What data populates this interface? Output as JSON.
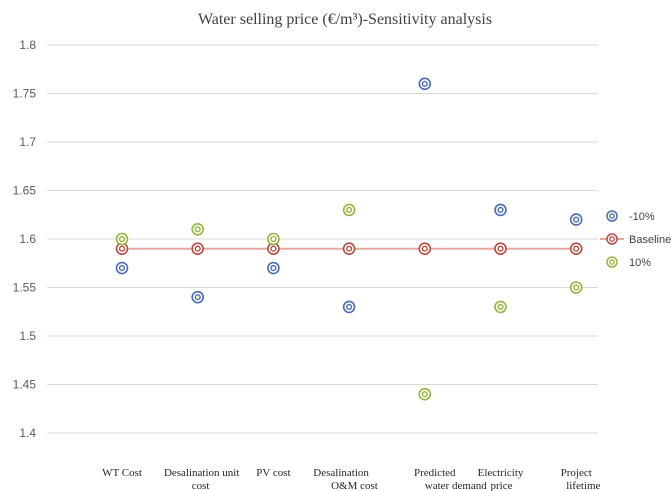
{
  "chart_data": {
    "type": "scatter",
    "title": "Water selling price (€/m³)-Sensitivity analysis",
    "categories": [
      [
        "WT Cost"
      ],
      [
        "Desalination  unit",
        "cost"
      ],
      [
        "PV cost"
      ],
      [
        "Desalination",
        "O&M cost"
      ],
      [
        "Predicted",
        "water demand"
      ],
      [
        "Electricity",
        "price"
      ],
      [
        "Project",
        "lifetime"
      ]
    ],
    "y_ticks": [
      "1.4",
      "1.45",
      "1.5",
      "1.55",
      "1.6",
      "1.65",
      "1.7",
      "1.75",
      "1.8"
    ],
    "ylim": [
      1.4,
      1.8
    ],
    "grid": true,
    "legend_position": "right",
    "series": [
      {
        "name": "-10%",
        "color": "#4a6bb5",
        "values": [
          1.57,
          1.54,
          1.57,
          1.53,
          1.76,
          1.63,
          1.62
        ]
      },
      {
        "name": "Baseline",
        "color": "#b84a3e",
        "values": [
          1.59,
          1.59,
          1.59,
          1.59,
          1.59,
          1.59,
          1.59
        ]
      },
      {
        "name": "10%",
        "color": "#96b43c",
        "values": [
          1.6,
          1.61,
          1.6,
          1.63,
          1.44,
          1.53,
          1.55
        ]
      }
    ],
    "baseline_line_color": "#e6a8a3"
  }
}
